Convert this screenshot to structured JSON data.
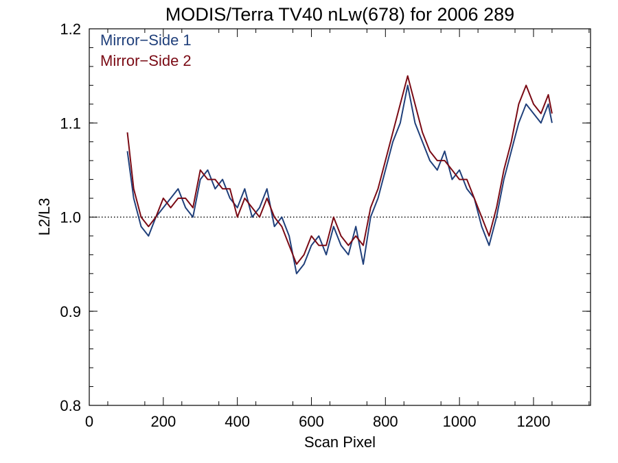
{
  "chart_data": {
    "type": "line",
    "title": "MODIS/Terra TV40 nLw(678) for 2006 289",
    "xlabel": "Scan Pixel",
    "ylabel": "L2/L3",
    "xlim": [
      0,
      1354
    ],
    "ylim": [
      0.8,
      1.2
    ],
    "xticks": [
      0,
      200,
      400,
      600,
      800,
      1000,
      1200
    ],
    "xtick_labels": [
      "0",
      "200",
      "400",
      "600",
      "800",
      "1000",
      "1200"
    ],
    "yticks": [
      0.8,
      0.9,
      1.0,
      1.1,
      1.2
    ],
    "ytick_labels": [
      "0.8",
      "0.9",
      "1.0",
      "1.1",
      "1.2"
    ],
    "reference_line": {
      "y": 1.0,
      "style": "dotted"
    },
    "grid": false,
    "legend_position": "top-left",
    "colors": {
      "mirror_side_1": "#1f3f7a",
      "mirror_side_2": "#7a0a14"
    },
    "series": [
      {
        "name": "Mirror-Side 1",
        "color": "#1f3f7a",
        "x": [
          103,
          120,
          140,
          160,
          180,
          200,
          220,
          240,
          260,
          280,
          300,
          320,
          340,
          360,
          380,
          400,
          420,
          440,
          460,
          480,
          500,
          520,
          540,
          560,
          580,
          600,
          620,
          640,
          660,
          680,
          700,
          720,
          740,
          760,
          780,
          800,
          820,
          840,
          860,
          880,
          900,
          920,
          940,
          960,
          980,
          1000,
          1020,
          1040,
          1060,
          1080,
          1100,
          1120,
          1140,
          1160,
          1180,
          1200,
          1220,
          1240,
          1250
        ],
        "values": [
          1.07,
          1.02,
          0.99,
          0.98,
          1.0,
          1.01,
          1.02,
          1.03,
          1.01,
          1.0,
          1.04,
          1.05,
          1.03,
          1.04,
          1.02,
          1.01,
          1.03,
          1.0,
          1.01,
          1.03,
          0.99,
          1.0,
          0.98,
          0.94,
          0.95,
          0.97,
          0.98,
          0.96,
          0.99,
          0.97,
          0.96,
          0.99,
          0.95,
          1.0,
          1.02,
          1.05,
          1.08,
          1.1,
          1.14,
          1.1,
          1.08,
          1.06,
          1.05,
          1.07,
          1.04,
          1.05,
          1.03,
          1.02,
          0.99,
          0.97,
          1.0,
          1.04,
          1.07,
          1.1,
          1.12,
          1.11,
          1.1,
          1.12,
          1.1
        ]
      },
      {
        "name": "Mirror-Side 2",
        "color": "#7a0a14",
        "x": [
          103,
          120,
          140,
          160,
          180,
          200,
          220,
          240,
          260,
          280,
          300,
          320,
          340,
          360,
          380,
          400,
          420,
          440,
          460,
          480,
          500,
          520,
          540,
          560,
          580,
          600,
          620,
          640,
          660,
          680,
          700,
          720,
          740,
          760,
          780,
          800,
          820,
          840,
          860,
          880,
          900,
          920,
          940,
          960,
          980,
          1000,
          1020,
          1040,
          1060,
          1080,
          1100,
          1120,
          1140,
          1160,
          1180,
          1200,
          1220,
          1240,
          1250
        ],
        "values": [
          1.09,
          1.03,
          1.0,
          0.99,
          1.0,
          1.02,
          1.01,
          1.02,
          1.02,
          1.01,
          1.05,
          1.04,
          1.04,
          1.03,
          1.03,
          1.0,
          1.02,
          1.01,
          1.0,
          1.02,
          1.0,
          0.99,
          0.97,
          0.95,
          0.96,
          0.98,
          0.97,
          0.97,
          1.0,
          0.98,
          0.97,
          0.98,
          0.97,
          1.01,
          1.03,
          1.06,
          1.09,
          1.12,
          1.15,
          1.12,
          1.09,
          1.07,
          1.06,
          1.06,
          1.05,
          1.04,
          1.04,
          1.02,
          1.0,
          0.98,
          1.01,
          1.05,
          1.08,
          1.12,
          1.14,
          1.12,
          1.11,
          1.13,
          1.11
        ]
      }
    ],
    "legend": [
      {
        "label": "Mirror−Side 1",
        "color": "#1f3f7a"
      },
      {
        "label": "Mirror−Side 2",
        "color": "#7a0a14"
      }
    ]
  }
}
